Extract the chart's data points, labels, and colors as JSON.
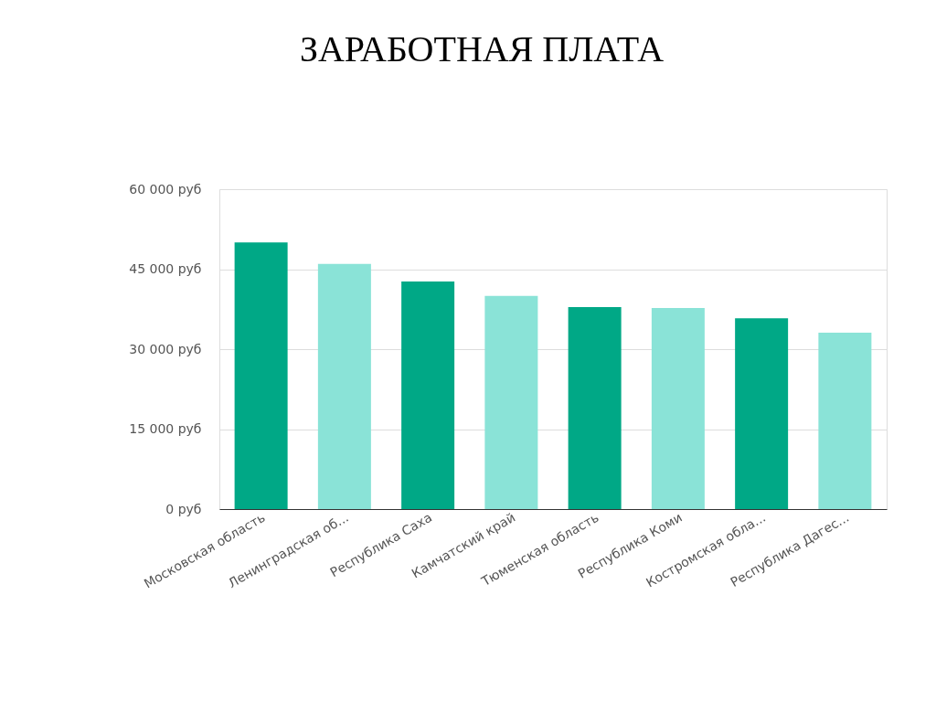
{
  "chart_data": {
    "type": "bar",
    "title": "ЗАРАБОТНАЯ ПЛАТА",
    "categories": [
      "Московская область",
      "Ленинградская об...",
      "Республика Саха",
      "Камчатский край",
      "Тюменская область",
      "Республика Коми",
      "Костромская обла...",
      "Республика Дагес..."
    ],
    "values": [
      50000,
      46000,
      42700,
      40000,
      37900,
      37700,
      35800,
      33100
    ],
    "colors": [
      "#00a886",
      "#8ae3d7",
      "#00a886",
      "#8ae3d7",
      "#00a886",
      "#8ae3d7",
      "#00a886",
      "#8ae3d7"
    ],
    "ylim": [
      0,
      60000
    ],
    "yticks": [
      {
        "value": 0,
        "label": "0 руб"
      },
      {
        "value": 15000,
        "label": "15 000 руб"
      },
      {
        "value": 30000,
        "label": "30 000 руб"
      },
      {
        "value": 45000,
        "label": "45 000 руб"
      },
      {
        "value": 60000,
        "label": "60 000 руб"
      }
    ],
    "grid": "y",
    "legend": false
  }
}
